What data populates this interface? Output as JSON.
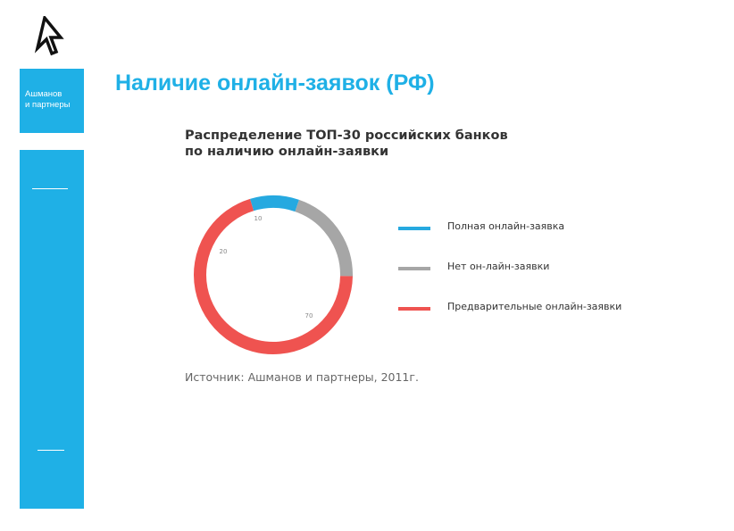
{
  "brand": {
    "line1": "Ашманов",
    "line2": "и партнеры"
  },
  "page": {
    "title": "Наличие онлайн-заявок (РФ)"
  },
  "colors": {
    "accent": "#1fb0e6"
  },
  "chart_data": {
    "type": "pie",
    "title_line1": "Распределение ТОП-30 российских банков",
    "title_line2": "по наличию онлайн-заявки",
    "categories": [
      "Полная онлайн-заявка",
      "Нет он-лайн-заявки",
      "Предварительные онлайн-заявки"
    ],
    "values": [
      10,
      20,
      70
    ],
    "value_labels": [
      "10",
      "20",
      "70"
    ],
    "colors": [
      "#26a9e0",
      "#a6a6a6",
      "#ef5350"
    ],
    "legend_position": "right",
    "source": "Источник: Ашманов и партнеры, 2011г."
  }
}
